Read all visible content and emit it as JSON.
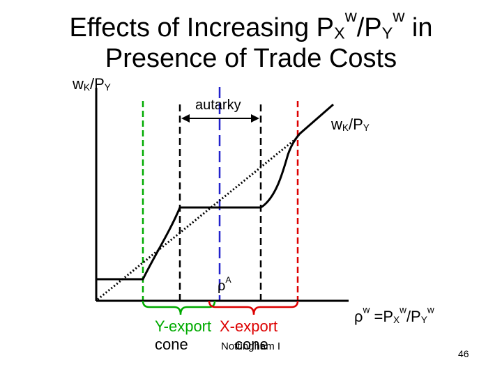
{
  "title": {
    "line1_prefix": "Effects of Increasing P",
    "line1_sub1": "X",
    "line1_sup1": "w",
    "line1_mid": "/P",
    "line1_sub2": "Y",
    "line1_sup2": "w",
    "line1_suffix": " in",
    "line2": "Presence of Trade Costs"
  },
  "y_axis_label": {
    "main": "w",
    "sub1": "K",
    "rest": "/P",
    "sub2": "Y"
  },
  "curve_label": {
    "main": "w",
    "sub1": "K",
    "rest": "/P",
    "sub2": "Y"
  },
  "x_axis_label": {
    "rho": "ρ",
    "rho_sup": "w",
    "eq": " =P",
    "sub1": "X",
    "sup1": "w",
    "slash": "/P",
    "sub2": "Y",
    "sup2": "w"
  },
  "autarky_label": "autarky",
  "rho_a_label": {
    "main": "ρ",
    "sup": "A"
  },
  "cones": {
    "y_export": {
      "line1": "Y-export",
      "line2": "cone",
      "color": "#00aa00"
    },
    "x_export": {
      "line1": "X-export",
      "line2": "cone",
      "color": "#dd0000"
    }
  },
  "footer": "Nottingham I",
  "page_number": "46",
  "colors": {
    "green_line": "#00aa00",
    "red_line": "#dd0000",
    "blue_line": "#2222cc",
    "black": "#000000"
  }
}
